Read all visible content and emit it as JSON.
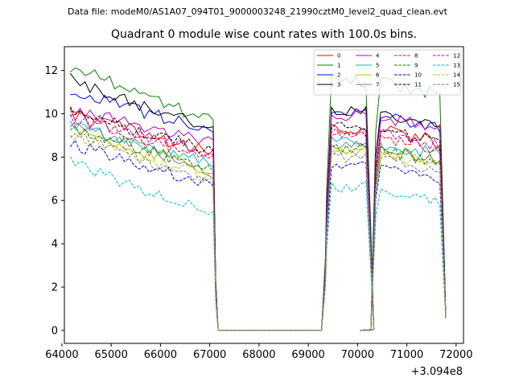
{
  "suptitle": "Data file: modeM0/AS1A07_094T01_9000003248_21990cztM0_level2_quad_clean.evt",
  "chart_data": {
    "type": "line",
    "title": "Quadrant 0 module wise count rates with 100.0s bins.",
    "xlabel": "",
    "ylabel": "",
    "x_offset_label": "+3.094e8",
    "xlim": [
      64050,
      72150
    ],
    "ylim": [
      -0.6,
      13.1
    ],
    "xticks": [
      64000,
      65000,
      66000,
      67000,
      68000,
      69000,
      70000,
      71000,
      72000
    ],
    "yticks": [
      0,
      2,
      4,
      6,
      8,
      10,
      12
    ],
    "legend_position": "top-right",
    "legend_ncol": 4,
    "segments": [
      {
        "t0": 64170,
        "n": 30
      },
      {
        "t0": 67170,
        "n": 22
      },
      {
        "t0": 69370,
        "n": 10
      },
      {
        "t0": 70370,
        "n": 14
      }
    ],
    "series": [
      {
        "name": "0",
        "color": "#ff0000",
        "dash": "solid",
        "base": 10.0,
        "tail": 8.2,
        "peak": 9.3
      },
      {
        "name": "1",
        "color": "#008000",
        "dash": "solid",
        "base": 12.2,
        "tail": 9.6,
        "peak": 11.5
      },
      {
        "name": "2",
        "color": "#0000ff",
        "dash": "solid",
        "base": 11.0,
        "tail": 9.2,
        "peak": 10.0
      },
      {
        "name": "3",
        "color": "#000000",
        "dash": "solid",
        "base": 11.6,
        "tail": 9.2,
        "peak": 10.1
      },
      {
        "name": "4",
        "color": "#bf00bf",
        "dash": "solid",
        "base": 10.2,
        "tail": 8.6,
        "peak": 9.9
      },
      {
        "name": "5",
        "color": "#00bfbf",
        "dash": "solid",
        "base": 9.5,
        "tail": 7.6,
        "peak": 8.7
      },
      {
        "name": "6",
        "color": "#bfbf00",
        "dash": "solid",
        "base": 9.3,
        "tail": 7.2,
        "peak": 8.3
      },
      {
        "name": "7",
        "color": "#808080",
        "dash": "solid",
        "base": 9.6,
        "tail": 7.3,
        "peak": 8.5
      },
      {
        "name": "8",
        "color": "#ff0000",
        "dash": "dashed",
        "base": 9.9,
        "tail": 7.9,
        "peak": 9.0
      },
      {
        "name": "9",
        "color": "#008000",
        "dash": "dashed",
        "base": 9.4,
        "tail": 7.4,
        "peak": 8.4
      },
      {
        "name": "10",
        "color": "#0000ff",
        "dash": "dashed",
        "base": 8.6,
        "tail": 6.7,
        "peak": 7.6
      },
      {
        "name": "11",
        "color": "#000000",
        "dash": "dashed",
        "base": 10.1,
        "tail": 8.3,
        "peak": 9.4
      },
      {
        "name": "12",
        "color": "#bf00bf",
        "dash": "dashed",
        "base": 9.8,
        "tail": 8.1,
        "peak": 9.1
      },
      {
        "name": "13",
        "color": "#00bfbf",
        "dash": "dashed",
        "base": 7.8,
        "tail": 5.3,
        "peak": 6.6
      },
      {
        "name": "14",
        "color": "#bfbf00",
        "dash": "dashed",
        "base": 9.0,
        "tail": 7.0,
        "peak": 8.2
      },
      {
        "name": "15",
        "color": "#808080",
        "dash": "dashed",
        "base": 9.2,
        "tail": 6.6,
        "peak": 8.0
      }
    ]
  }
}
